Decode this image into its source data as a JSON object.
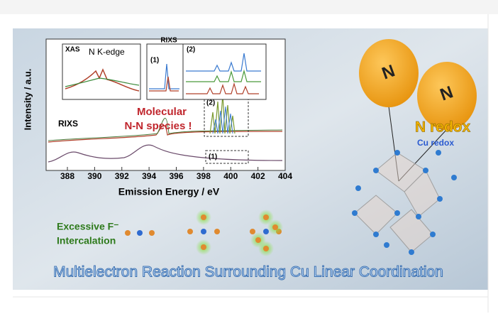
{
  "figure": {
    "inset_xas": {
      "label": "XAS",
      "title": "N K-edge"
    },
    "inset_rixs": {
      "title": "RIXS",
      "panel_1": "(1)",
      "panel_2": "(2)"
    },
    "main_plot": {
      "y_label": "Intensity / a.u.",
      "series_label": "RIXS",
      "annotation_line1": "Molecular",
      "annotation_line2": "N-N species !",
      "box_2": "(2)",
      "box_1": "(1)",
      "x_ticks": [
        388,
        390,
        392,
        394,
        396,
        398,
        400,
        402,
        404
      ],
      "x_label": "Emission Energy / eV"
    },
    "balloons": [
      "N",
      "N"
    ],
    "n_redox": "N redox",
    "cu_redox": "Cu redox",
    "intercalation_line1": "Excessive F⁻",
    "intercalation_line2": "Intercalation",
    "banner": "Multielectron Reaction Surrounding Cu Linear Coordination"
  }
}
